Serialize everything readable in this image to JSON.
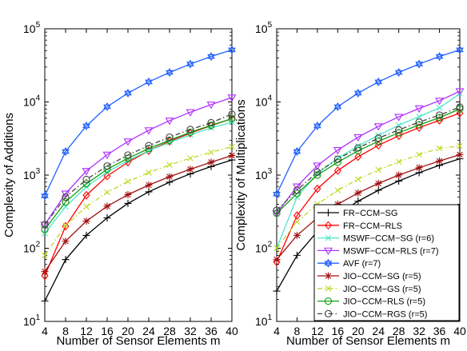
{
  "chart_data": [
    {
      "type": "line",
      "title": "",
      "xlabel": "Number of Sensor Elements m",
      "ylabel": "Complexity of Additions",
      "yscale": "log",
      "xlim": [
        4,
        40
      ],
      "ylim": [
        10,
        100000
      ],
      "grid": false,
      "x": [
        4,
        8,
        12,
        16,
        20,
        24,
        28,
        32,
        36,
        40
      ],
      "x_ticks": [
        "4",
        "8",
        "12",
        "16",
        "20",
        "24",
        "28",
        "32",
        "36",
        "40"
      ],
      "y_ticks": [
        {
          "base": "10",
          "exp": "1"
        },
        {
          "base": "10",
          "exp": "2"
        },
        {
          "base": "10",
          "exp": "3"
        },
        {
          "base": "10",
          "exp": "4"
        },
        {
          "base": "10",
          "exp": "5"
        }
      ],
      "series": [
        {
          "name": "FR−CCM−SG",
          "values": [
            19,
            70,
            150,
            260,
            410,
            590,
            800,
            1040,
            1310,
            1610
          ]
        },
        {
          "name": "FR−CCM−RLS",
          "values": [
            42,
            200,
            530,
            970,
            1500,
            2150,
            2900,
            3750,
            4750,
            5900
          ]
        },
        {
          "name": "MSWF−CCM−SG (r=6)",
          "values": [
            160,
            370,
            690,
            1100,
            1580,
            2150,
            2800,
            3550,
            4400,
            5300
          ]
        },
        {
          "name": "MSWF−CCM−RLS (r=7)",
          "values": [
            210,
            560,
            1140,
            1900,
            2880,
            4100,
            5560,
            7240,
            9200,
            11500
          ]
        },
        {
          "name": "AVF (r=7)",
          "values": [
            520,
            2100,
            4700,
            8600,
            13200,
            18800,
            25300,
            33000,
            41800,
            51500
          ]
        },
        {
          "name": "JIO−CCM−SG (r=5)",
          "values": [
            48,
            125,
            235,
            375,
            540,
            730,
            950,
            1200,
            1500,
            1850
          ]
        },
        {
          "name": "JIO−CCM−GS (r=5)",
          "values": [
            80,
            205,
            370,
            580,
            820,
            1080,
            1380,
            1700,
            2050,
            2450
          ]
        },
        {
          "name": "JIO−CCM−RLS (r=5)",
          "values": [
            180,
            430,
            760,
            1200,
            1700,
            2300,
            3000,
            3850,
            4800,
            5900
          ]
        },
        {
          "name": "JIO−CCM−RGS (r=5)",
          "values": [
            210,
            500,
            870,
            1330,
            1880,
            2530,
            3300,
            4200,
            5200,
            6800
          ]
        }
      ]
    },
    {
      "type": "line",
      "title": "",
      "xlabel": "Number of Sensor Elements m",
      "ylabel": "Complexity of Multiplications",
      "yscale": "log",
      "xlim": [
        4,
        40
      ],
      "ylim": [
        10,
        100000
      ],
      "grid": false,
      "x": [
        4,
        8,
        12,
        16,
        20,
        24,
        28,
        32,
        36,
        40
      ],
      "x_ticks": [
        "4",
        "8",
        "12",
        "16",
        "20",
        "24",
        "28",
        "32",
        "36",
        "40"
      ],
      "y_ticks": [
        {
          "base": "10",
          "exp": "1"
        },
        {
          "base": "10",
          "exp": "2"
        },
        {
          "base": "10",
          "exp": "3"
        },
        {
          "base": "10",
          "exp": "4"
        },
        {
          "base": "10",
          "exp": "5"
        }
      ],
      "legend_position": "bottom-right",
      "series": [
        {
          "name": "FR−CCM−SG",
          "values": [
            26,
            80,
            170,
            290,
            440,
            620,
            830,
            1080,
            1360,
            1670
          ]
        },
        {
          "name": "FR−CCM−RLS",
          "values": [
            65,
            280,
            650,
            1150,
            1780,
            2550,
            3450,
            4450,
            5600,
            7000
          ]
        },
        {
          "name": "MSWF−CCM−SG (r=6)",
          "values": [
            100,
            500,
            1050,
            1700,
            2500,
            3500,
            4800,
            6300,
            8300,
            13000
          ]
        },
        {
          "name": "MSWF−CCM−RLS (r=7)",
          "values": [
            300,
            700,
            1350,
            2200,
            3300,
            4650,
            6250,
            8150,
            10400,
            14000
          ]
        },
        {
          "name": "AVF (r=7)",
          "values": [
            550,
            2100,
            4700,
            8600,
            13200,
            18800,
            25300,
            33000,
            41800,
            51500
          ]
        },
        {
          "name": "JIO−CCM−SG (r=5)",
          "values": [
            70,
            150,
            260,
            400,
            570,
            770,
            1000,
            1260,
            1560,
            1900
          ]
        },
        {
          "name": "JIO−CCM−GS (r=5)",
          "values": [
            100,
            230,
            400,
            620,
            880,
            1180,
            1520,
            1900,
            2320,
            2500
          ]
        },
        {
          "name": "JIO−CCM−RLS (r=5)",
          "values": [
            300,
            560,
            1000,
            1500,
            2150,
            2900,
            3800,
            4850,
            6100,
            8000
          ]
        },
        {
          "name": "JIO−CCM−RGS (r=5)",
          "values": [
            330,
            620,
            1100,
            1650,
            2350,
            3200,
            4150,
            5300,
            6600,
            8500
          ]
        }
      ]
    }
  ],
  "styles": {
    "series": [
      {
        "color": "#000000",
        "marker": "plus",
        "dash": "solid"
      },
      {
        "color": "#ff0000",
        "marker": "diamond",
        "dash": "solid"
      },
      {
        "color": "#4de6c8",
        "marker": "x",
        "dash": "solid"
      },
      {
        "color": "#b030ff",
        "marker": "triangle-down",
        "dash": "solid"
      },
      {
        "color": "#2060ff",
        "marker": "hexagram",
        "dash": "solid"
      },
      {
        "color": "#a01010",
        "marker": "asterisk",
        "dash": "solid"
      },
      {
        "color": "#c0d820",
        "marker": "x",
        "dash": "dashdot"
      },
      {
        "color": "#10a010",
        "marker": "circle",
        "dash": "solid"
      },
      {
        "color": "#404040",
        "marker": "circle",
        "dash": "dashdot"
      }
    ]
  }
}
